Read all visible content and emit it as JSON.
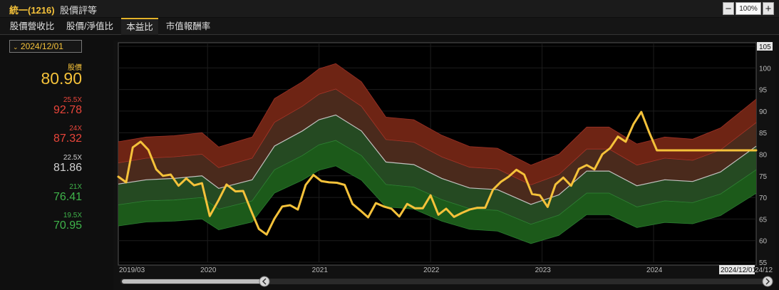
{
  "header": {
    "stock": "統一(1216)",
    "name": "股價評等",
    "zoom": "100%",
    "zoom_minus": "−",
    "zoom_plus": "+"
  },
  "tabs": [
    {
      "label": "股價營收比"
    },
    {
      "label": "股價/淨值比"
    },
    {
      "label": "本益比"
    },
    {
      "label": "市值報酬率"
    }
  ],
  "side": {
    "date": "2024/12/01",
    "price_label": "股價",
    "price": "80.90",
    "bands": [
      {
        "label": "25.5X",
        "value": "92.78",
        "color": "#e8453a"
      },
      {
        "label": "24X",
        "value": "87.32",
        "color": "#e8453a"
      },
      {
        "label": "22.5X",
        "value": "81.86",
        "color": "#d0d0d0"
      },
      {
        "label": "21X",
        "value": "76.41",
        "color": "#3fb34a"
      },
      {
        "label": "19.5X",
        "value": "70.95",
        "color": "#3fb34a"
      }
    ]
  },
  "colors": {
    "price": "#f5c23a",
    "red": "#e8453a",
    "green": "#3fb34a",
    "mid": "#d0d0d0"
  },
  "chart_data": {
    "type": "area",
    "x_labels": [
      "2019/03",
      "2020",
      "2021",
      "2022",
      "2023",
      "2024",
      "2024/12/01"
    ],
    "x_last_label": "24/12",
    "x_range": [
      2019.2,
      2024.92
    ],
    "y_range": [
      55,
      105
    ],
    "y_ticks": [
      55,
      60,
      65,
      70,
      75,
      80,
      85,
      90,
      95,
      100,
      105
    ],
    "bands_x": [
      2019.2,
      2019.45,
      2019.7,
      2019.95,
      2020.1,
      2020.4,
      2020.6,
      2020.85,
      2021.0,
      2021.15,
      2021.38,
      2021.6,
      2021.85,
      2022.1,
      2022.35,
      2022.6,
      2022.9,
      2023.15,
      2023.4,
      2023.6,
      2023.85,
      2024.1,
      2024.35,
      2024.6,
      2024.92
    ],
    "band_multipliers": [
      19.5,
      21,
      22.5,
      24,
      25.5
    ],
    "bands": [
      [
        63.4,
        64.3,
        64.5,
        65.0,
        62.5,
        64.3,
        71.0,
        74.0,
        76.3,
        77.3,
        74.0,
        67.8,
        67.3,
        64.5,
        62.6,
        62.2,
        59.3,
        61.2,
        66.0,
        66.0,
        63.0,
        64.2,
        63.9,
        65.8,
        70.95
      ],
      [
        68.3,
        69.2,
        69.4,
        70.0,
        67.3,
        69.2,
        76.4,
        79.7,
        82.2,
        83.2,
        79.7,
        73.0,
        72.4,
        69.5,
        67.4,
        67.0,
        63.8,
        65.9,
        71.0,
        71.0,
        67.8,
        69.2,
        68.8,
        70.8,
        76.41
      ],
      [
        73.1,
        74.1,
        74.4,
        75.0,
        72.1,
        74.1,
        81.9,
        85.4,
        88.0,
        89.1,
        85.4,
        78.2,
        77.6,
        74.4,
        72.2,
        71.8,
        68.4,
        70.6,
        76.1,
        76.1,
        72.7,
        74.1,
        73.7,
        75.9,
        81.86
      ],
      [
        78.0,
        79.1,
        79.4,
        80.0,
        76.9,
        79.1,
        87.4,
        91.1,
        93.9,
        95.1,
        91.1,
        83.4,
        82.8,
        79.4,
        77.0,
        76.6,
        72.9,
        75.3,
        81.2,
        81.2,
        77.5,
        79.1,
        78.6,
        81.0,
        87.32
      ],
      [
        82.9,
        84.0,
        84.3,
        85.0,
        81.7,
        84.0,
        92.9,
        96.8,
        99.8,
        101.0,
        96.8,
        88.6,
        88.0,
        84.4,
        81.8,
        81.4,
        77.5,
        80.0,
        86.3,
        86.3,
        82.4,
        84.0,
        83.5,
        86.1,
        92.78
      ]
    ],
    "price_x": [
      2019.2,
      2019.27,
      2019.33,
      2019.4,
      2019.47,
      2019.54,
      2019.6,
      2019.67,
      2019.74,
      2019.81,
      2019.88,
      2019.95,
      2020.02,
      2020.1,
      2020.17,
      2020.25,
      2020.32,
      2020.39,
      2020.46,
      2020.53,
      2020.6,
      2020.67,
      2020.74,
      2020.81,
      2020.88,
      2020.95,
      2021.02,
      2021.09,
      2021.16,
      2021.23,
      2021.3,
      2021.37,
      2021.44,
      2021.51,
      2021.58,
      2021.65,
      2021.72,
      2021.79,
      2021.86,
      2021.93,
      2022.0,
      2022.07,
      2022.14,
      2022.21,
      2022.28,
      2022.35,
      2022.42,
      2022.49,
      2022.56,
      2022.63,
      2022.7,
      2022.77,
      2022.84,
      2022.91,
      2022.98,
      2023.05,
      2023.12,
      2023.19,
      2023.26,
      2023.33,
      2023.4,
      2023.47,
      2023.54,
      2023.61,
      2023.68,
      2023.75,
      2023.82,
      2023.89,
      2023.96,
      2024.03,
      2024.1,
      2024.17,
      2024.24,
      2024.31,
      2024.38,
      2024.45,
      2024.52,
      2024.59,
      2024.66,
      2024.73,
      2024.8,
      2024.87,
      2024.92
    ],
    "price": [
      74.8,
      73.5,
      81.6,
      82.9,
      81.0,
      76.5,
      75.0,
      75.3,
      72.7,
      74.4,
      72.8,
      73.3,
      65.7,
      69.4,
      73.0,
      71.4,
      71.5,
      67.0,
      62.7,
      61.4,
      65.1,
      67.9,
      68.2,
      67.2,
      72.9,
      75.2,
      73.8,
      73.5,
      73.4,
      72.9,
      68.5,
      67.0,
      65.4,
      68.7,
      67.9,
      67.4,
      65.6,
      68.5,
      67.5,
      67.5,
      70.5,
      66.0,
      67.4,
      65.5,
      66.4,
      67.2,
      67.6,
      67.6,
      71.8,
      73.6,
      74.8,
      76.4,
      75.3,
      70.8,
      70.5,
      67.8,
      73.0,
      74.6,
      72.7,
      76.6,
      77.5,
      76.5,
      80.0,
      81.4,
      84.1,
      82.9,
      87.0,
      89.8,
      85.1,
      80.9,
      80.9,
      80.9,
      80.9,
      80.9,
      80.9,
      80.9,
      80.9,
      80.9,
      80.9,
      80.9,
      80.9,
      80.9,
      80.9
    ]
  }
}
